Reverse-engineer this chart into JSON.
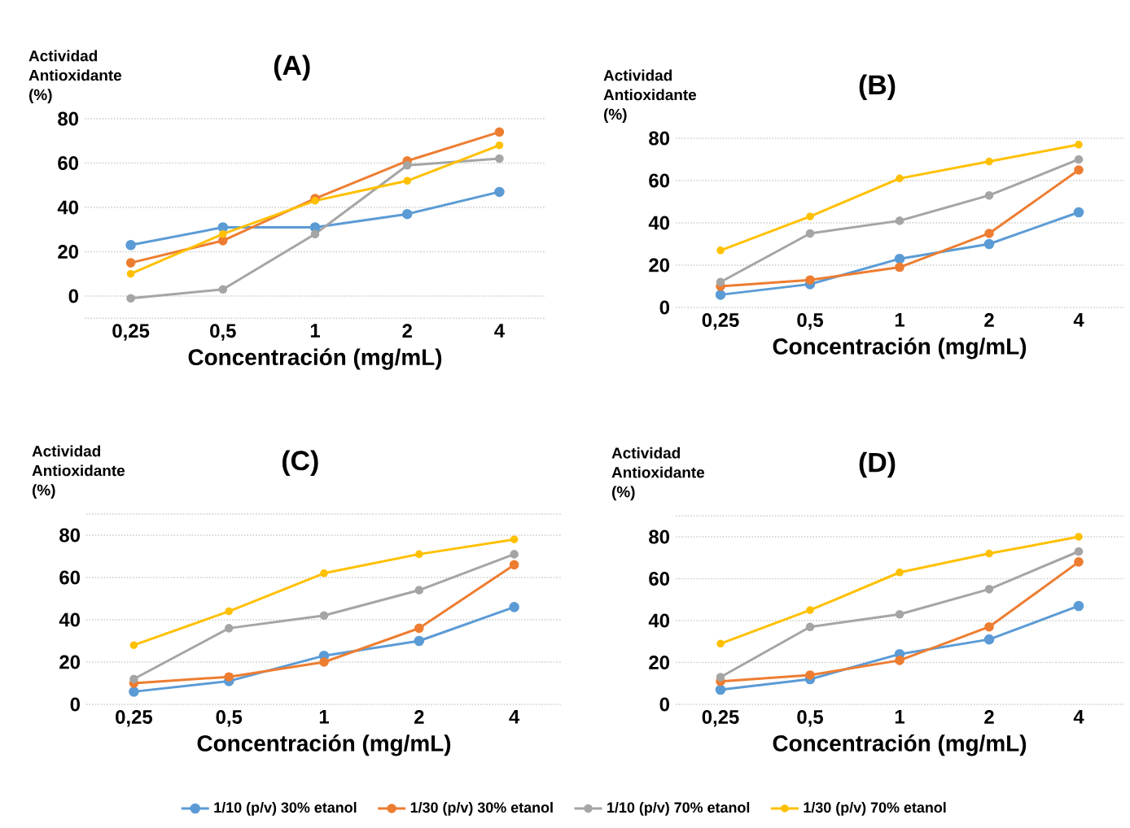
{
  "chart_data": [
    {
      "type": "line",
      "title": "(A)",
      "xlabel": "Concentración (mg/mL)",
      "ylabel": "Actividad Antioxidante (%)",
      "categories": [
        "0,25",
        "0,5",
        "1",
        "2",
        "4"
      ],
      "ylim": [
        -10,
        80
      ],
      "yticks": [
        0,
        20,
        40,
        60,
        80
      ],
      "grid": "y",
      "marker": "circle",
      "tick_labels": "xy",
      "series": [
        {
          "color": "#5b9bd5",
          "values": [
            23,
            31,
            31,
            37,
            47
          ]
        },
        {
          "color": "#ed7d31",
          "values": [
            15,
            25,
            44,
            61,
            74
          ]
        },
        {
          "color": "#a5a5a5",
          "values": [
            -1,
            3,
            28,
            59,
            62
          ]
        },
        {
          "color": "#ffc000",
          "values": [
            10,
            28,
            43,
            52,
            68
          ]
        }
      ]
    },
    {
      "type": "line",
      "title": "(B)",
      "xlabel": "Concentración (mg/mL)",
      "ylabel": "Actividad Antioxidante (%)",
      "categories": [
        "0,25",
        "0,5",
        "1",
        "2",
        "4"
      ],
      "ylim": [
        0,
        80
      ],
      "yticks": [
        0,
        20,
        40,
        60,
        80
      ],
      "grid": "y",
      "marker": "circle",
      "series": [
        {
          "color": "#5b9bd5",
          "values": [
            6,
            11,
            23,
            30,
            45
          ]
        },
        {
          "color": "#ed7d31",
          "values": [
            10,
            13,
            19,
            35,
            65
          ]
        },
        {
          "color": "#a5a5a5",
          "values": [
            12,
            35,
            41,
            53,
            70
          ]
        },
        {
          "color": "#ffc000",
          "values": [
            27,
            43,
            61,
            69,
            77
          ]
        }
      ]
    },
    {
      "type": "line",
      "title": "(C)",
      "xlabel": "Concentración (mg/mL)",
      "ylabel": "Actividad Antioxidante (%)",
      "categories": [
        "0,25",
        "0,5",
        "1",
        "2",
        "4"
      ],
      "ylim": [
        0,
        90
      ],
      "yticks": [
        0,
        20,
        40,
        60,
        80
      ],
      "grid": "y",
      "marker": "circle",
      "series": [
        {
          "color": "#5b9bd5",
          "values": [
            6,
            11,
            23,
            30,
            46
          ]
        },
        {
          "color": "#ed7d31",
          "values": [
            10,
            13,
            20,
            36,
            66
          ]
        },
        {
          "color": "#a5a5a5",
          "values": [
            12,
            36,
            42,
            54,
            71
          ]
        },
        {
          "color": "#ffc000",
          "values": [
            28,
            44,
            62,
            71,
            78
          ]
        }
      ]
    },
    {
      "type": "line",
      "title": "(D)",
      "xlabel": "Concentración (mg/mL)",
      "ylabel": "Actividad Antioxidante (%)",
      "categories": [
        "0,25",
        "0,5",
        "1",
        "2",
        "4"
      ],
      "ylim": [
        0,
        90
      ],
      "yticks": [
        0,
        20,
        40,
        60,
        80
      ],
      "grid": "y",
      "marker": "circle",
      "legend": "bottom",
      "series": [
        {
          "name": "1/10 (p/v) 30% etanol",
          "color": "#5b9bd5",
          "values": [
            7,
            12,
            24,
            31,
            47
          ]
        },
        {
          "name": "1/30 (p/v) 30% etanol",
          "color": "#ed7d31",
          "values": [
            11,
            14,
            21,
            37,
            68
          ]
        },
        {
          "name": "1/10 (p/v) 70% etanol",
          "color": "#a5a5a5",
          "values": [
            13,
            37,
            43,
            55,
            73
          ]
        },
        {
          "name": "1/30 (p/v) 70% etanol",
          "color": "#ffc000",
          "values": [
            29,
            45,
            63,
            72,
            80
          ]
        }
      ]
    }
  ]
}
